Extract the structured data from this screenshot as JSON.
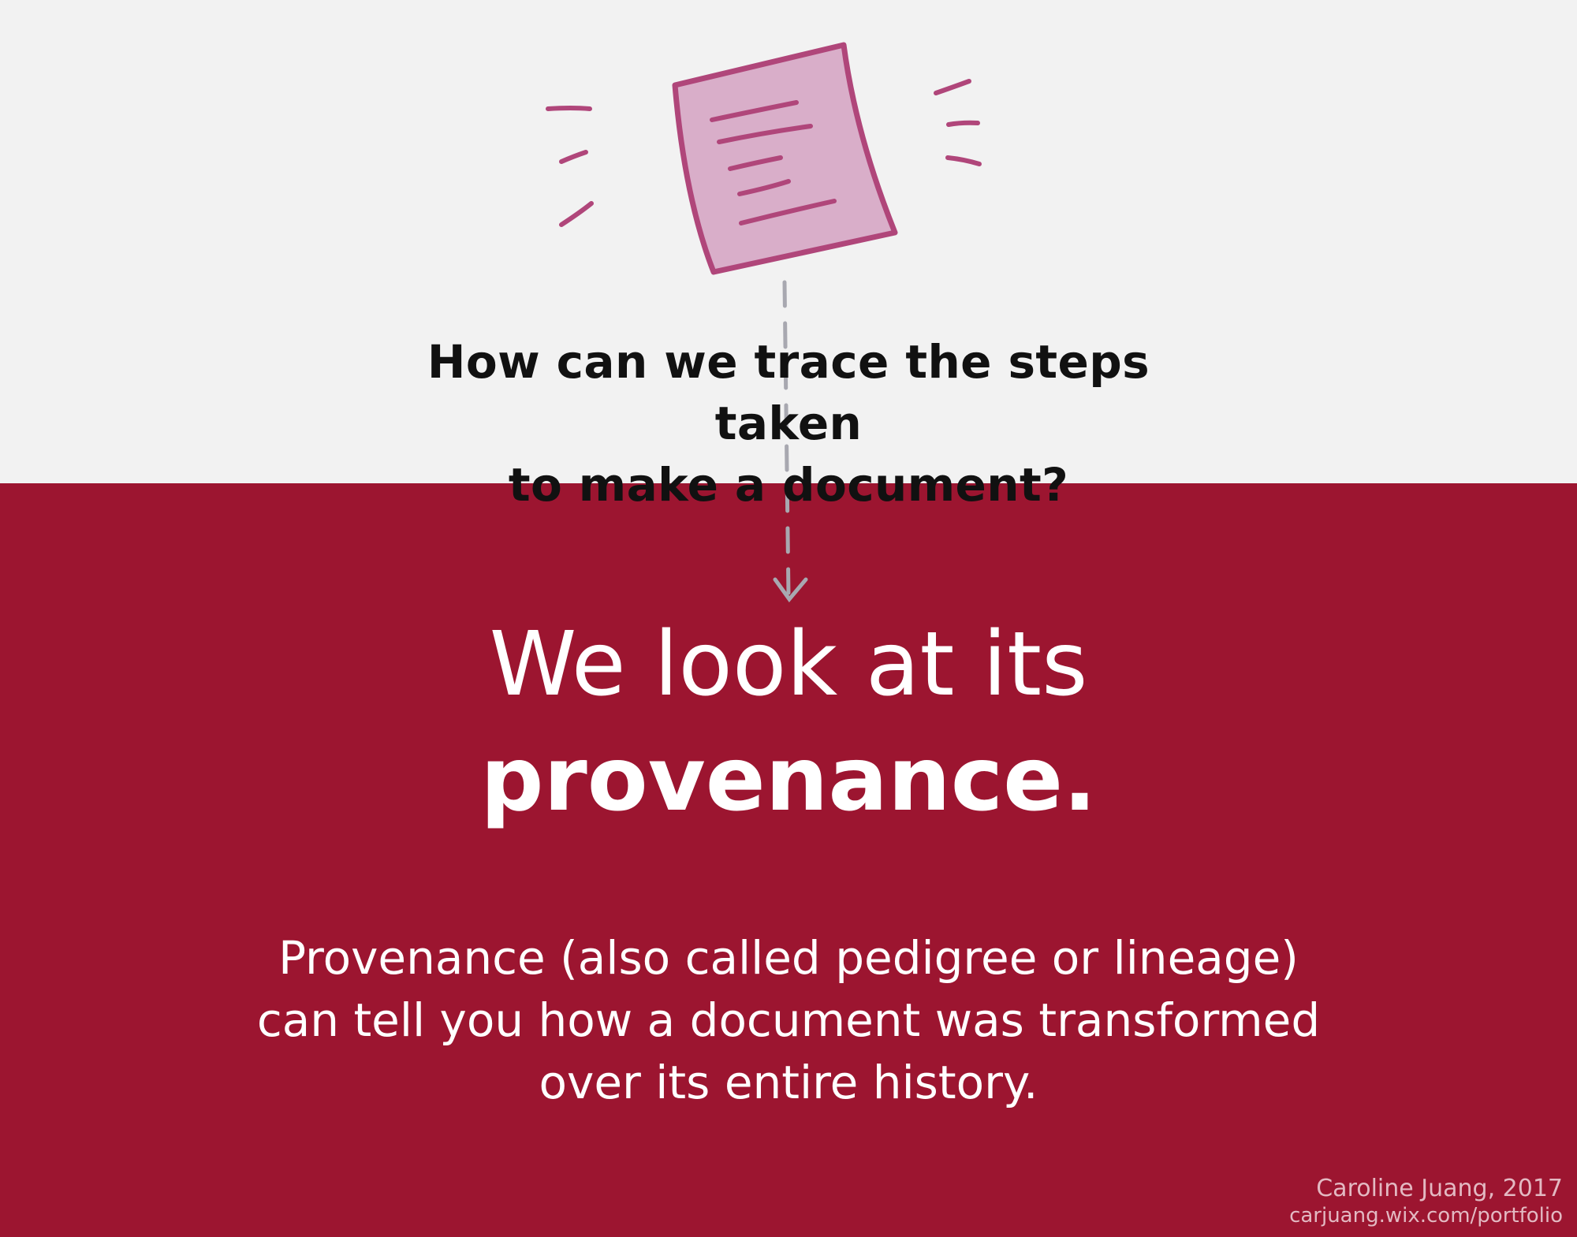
{
  "question": {
    "line1": "How can we trace the steps taken",
    "line2": "to make a document?"
  },
  "answer": {
    "line1": "We look at its",
    "line2": "provenance."
  },
  "description": {
    "line1": "Provenance (also called pedigree or lineage)",
    "line2": "can tell you how a document was transformed",
    "line3": "over its entire history."
  },
  "credit": {
    "author": "Caroline Juang, 2017",
    "url": "carjuang.wix.com/portfolio"
  },
  "icons": [
    "document-icon",
    "motion-lines-icon",
    "dashed-arrow-icon"
  ],
  "colors": {
    "top_background": "#f2f2f2",
    "bottom_background": "#9c1530",
    "document_fill": "#d9aec9",
    "document_stroke": "#b0467a",
    "arrow": "#a8a8b0"
  }
}
